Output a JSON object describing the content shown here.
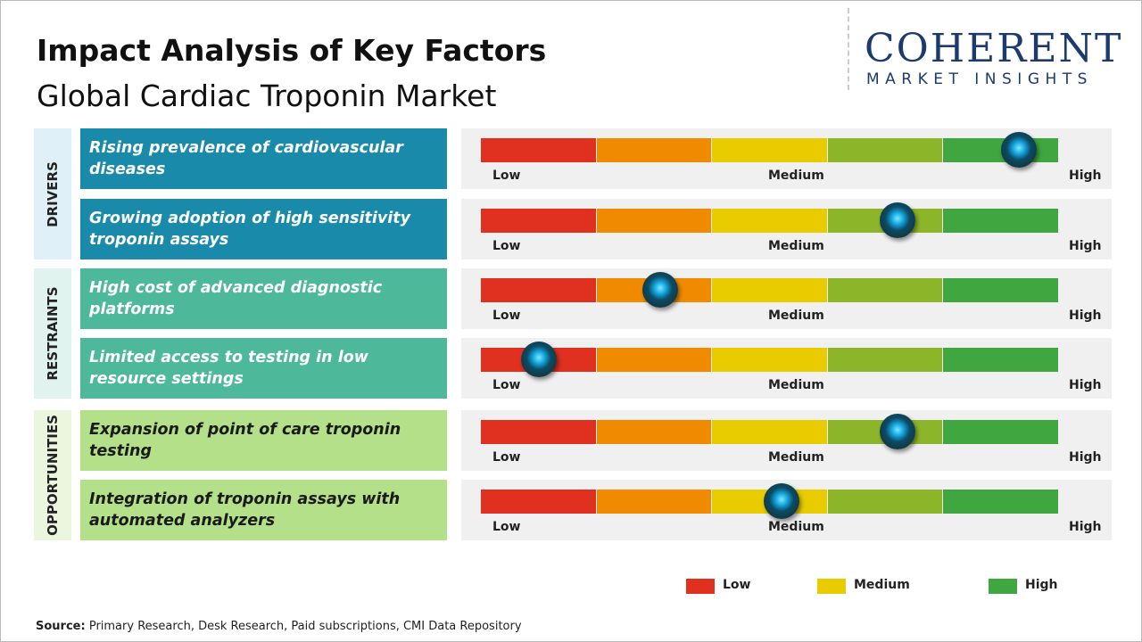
{
  "header": {
    "title": "Impact Analysis of Key Factors",
    "subtitle": "Global Cardiac Troponin Market"
  },
  "logo": {
    "name": "COHERENT",
    "tagline": "MARKET INSIGHTS"
  },
  "scale": {
    "range": [
      0,
      100
    ],
    "labels": [
      "Low",
      "Medium",
      "High"
    ],
    "colors": [
      "#e03020",
      "#f08a00",
      "#e8cc00",
      "#8db52a",
      "#3fa640"
    ]
  },
  "groups": [
    {
      "name": "DRIVERS",
      "color": "#1a8aab",
      "side_color": "#dff0f8",
      "text_color": "#ffffff",
      "factors": [
        {
          "label": "Rising prevalence of cardiovascular diseases",
          "impact": 93
        },
        {
          "label": "Growing adoption of high sensitivity troponin assays",
          "impact": 72
        }
      ]
    },
    {
      "name": "RESTRAINTS",
      "color": "#4db89a",
      "side_color": "#e0f3ee",
      "text_color": "#ffffff",
      "factors": [
        {
          "label": "High cost of advanced diagnostic platforms",
          "impact": 31
        },
        {
          "label": "Limited access to testing in low resource settings",
          "impact": 10
        }
      ]
    },
    {
      "name": "OPPORTUNITIES",
      "color": "#b4e08a",
      "side_color": "#eaf7de",
      "text_color": "#1a1a1a",
      "factors": [
        {
          "label": "Expansion of point of care troponin testing",
          "impact": 72
        },
        {
          "label": "Integration of troponin assays with automated analyzers",
          "impact": 52
        }
      ]
    }
  ],
  "legend": [
    {
      "label": "Low",
      "color": "#e03020"
    },
    {
      "label": "Medium",
      "color": "#e8cc00"
    },
    {
      "label": "High",
      "color": "#3fa640"
    }
  ],
  "source": {
    "label": "Source:",
    "text": "Primary Research, Desk Research, Paid subscriptions, CMI Data Repository"
  }
}
